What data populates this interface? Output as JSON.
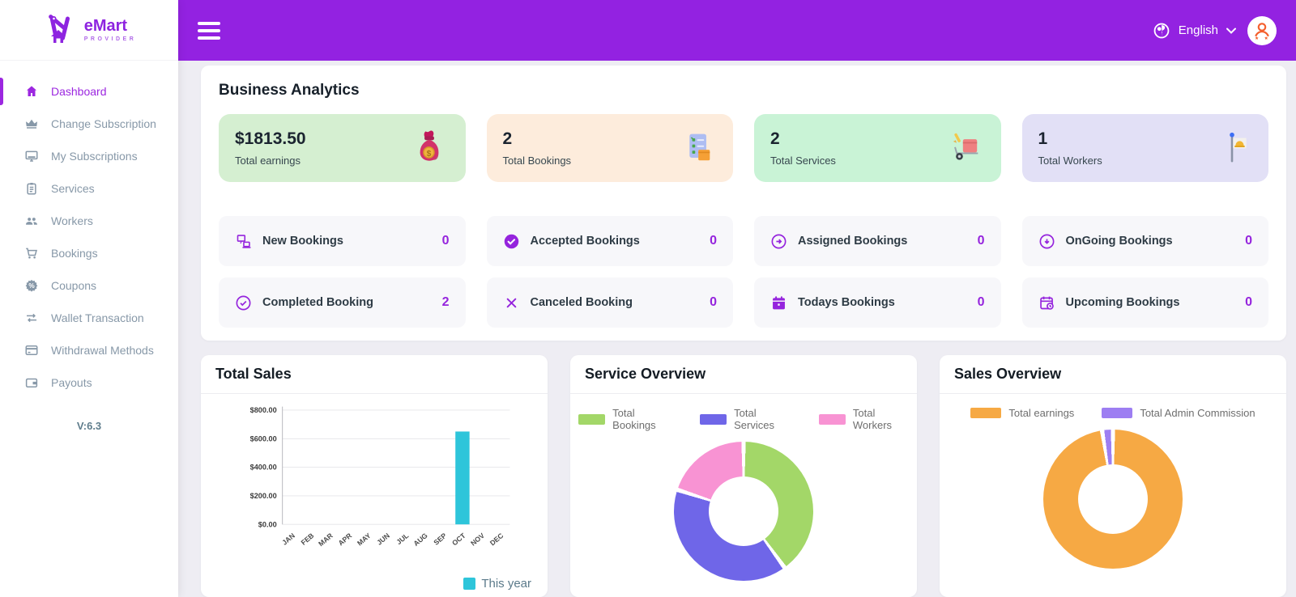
{
  "brand": {
    "name": "eMart",
    "tagline": "PROVIDER"
  },
  "header": {
    "language": "English"
  },
  "sidebar": {
    "items": [
      {
        "label": "Dashboard",
        "active": true
      },
      {
        "label": "Change Subscription",
        "active": false
      },
      {
        "label": "My Subscriptions",
        "active": false
      },
      {
        "label": "Services",
        "active": false
      },
      {
        "label": "Workers",
        "active": false
      },
      {
        "label": "Bookings",
        "active": false
      },
      {
        "label": "Coupons",
        "active": false
      },
      {
        "label": "Wallet Transaction",
        "active": false
      },
      {
        "label": "Withdrawal Methods",
        "active": false
      },
      {
        "label": "Payouts",
        "active": false
      }
    ],
    "version": "V:6.3"
  },
  "analytics": {
    "title": "Business Analytics",
    "stat_cards": [
      {
        "value": "$1813.50",
        "label": "Total earnings",
        "bg": "#d5efd1",
        "icon": "money-bag"
      },
      {
        "value": "2",
        "label": "Total Bookings",
        "bg": "#fdecdc",
        "icon": "bookings-clipboard"
      },
      {
        "value": "2",
        "label": "Total Services",
        "bg": "#c9f3d6",
        "icon": "services-trolley"
      },
      {
        "value": "1",
        "label": "Total Workers",
        "bg": "#e2e0f6",
        "icon": "worker-flag"
      }
    ],
    "booking_stats": [
      {
        "label": "New Bookings",
        "value": "0"
      },
      {
        "label": "Accepted Bookings",
        "value": "0"
      },
      {
        "label": "Assigned Bookings",
        "value": "0"
      },
      {
        "label": "OnGoing Bookings",
        "value": "0"
      },
      {
        "label": "Completed Booking",
        "value": "2"
      },
      {
        "label": "Canceled Booking",
        "value": "0"
      },
      {
        "label": "Todays Bookings",
        "value": "0"
      },
      {
        "label": "Upcoming Bookings",
        "value": "0"
      }
    ]
  },
  "colors": {
    "accent_purple": "#9524dd",
    "header_purple": "#9322e1",
    "page_bg": "#eeedf3"
  },
  "chart_data": [
    {
      "type": "bar",
      "title": "Total Sales",
      "categories": [
        "JAN",
        "FEB",
        "MAR",
        "APR",
        "MAY",
        "JUN",
        "JUL",
        "AUG",
        "SEP",
        "OCT",
        "NOV",
        "DEC"
      ],
      "series": [
        {
          "name": "This year",
          "color": "#2ec5da",
          "values": [
            0,
            0,
            0,
            0,
            0,
            0,
            0,
            0,
            0,
            650,
            0,
            0
          ]
        }
      ],
      "ylabel": "",
      "xlabel": "",
      "ylim": [
        0,
        800
      ],
      "ytick_labels": [
        "$0.00",
        "$200.00",
        "$400.00",
        "$600.00",
        "$800.00"
      ],
      "grid": true,
      "legend_position": "bottom-right"
    },
    {
      "type": "pie",
      "title": "Service Overview",
      "labels": [
        "Total Bookings",
        "Total Services",
        "Total Workers"
      ],
      "values": [
        2,
        2,
        1
      ],
      "colors": [
        "#a3d768",
        "#6f66e8",
        "#f893d3"
      ],
      "donut": true,
      "start_angle": "top, clockwise",
      "legend_position": "top"
    },
    {
      "type": "pie",
      "title": "Sales Overview",
      "labels": [
        "Total earnings",
        "Total Admin Commission"
      ],
      "values": [
        97.5,
        2.5
      ],
      "colors": [
        "#f6a944",
        "#9d7ef2"
      ],
      "donut": true,
      "start_angle": "top, clockwise",
      "legend_position": "top"
    }
  ]
}
